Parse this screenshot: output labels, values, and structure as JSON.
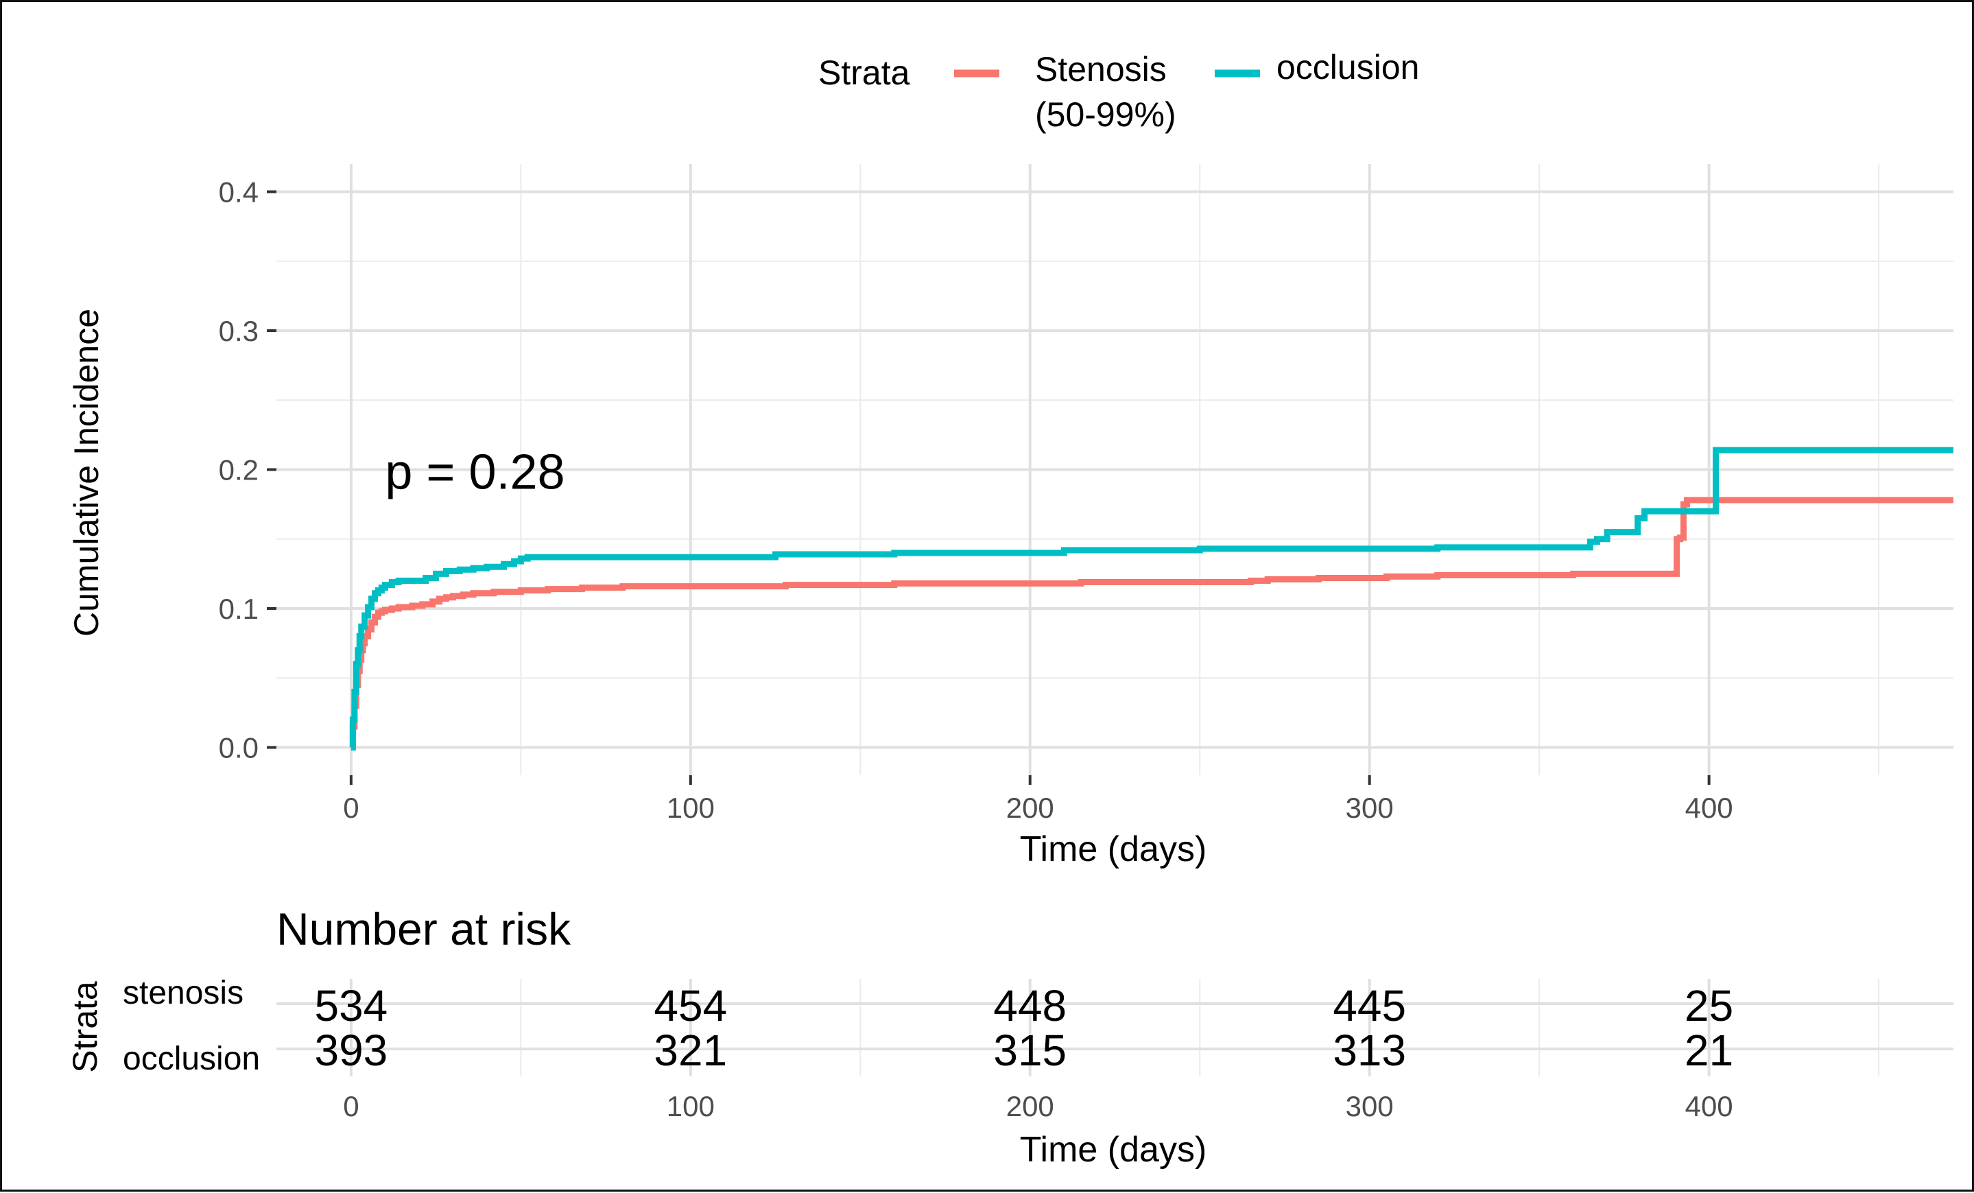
{
  "chart_data": {
    "type": "line",
    "step": true,
    "xlabel": "Time (days)",
    "ylabel": "Cumulative Incidence",
    "xlim": [
      -22,
      472
    ],
    "ylim": [
      -0.02,
      0.42
    ],
    "x_ticks": [
      0,
      100,
      200,
      300,
      400
    ],
    "x_tick_labels": [
      "0",
      "100",
      "200",
      "300",
      "400"
    ],
    "y_ticks": [
      0.0,
      0.1,
      0.2,
      0.3,
      0.4
    ],
    "y_tick_labels": [
      "0.0",
      "0.1",
      "0.2",
      "0.3",
      "0.4"
    ],
    "x_minor_ticks": [
      50,
      150,
      250,
      350,
      450
    ],
    "y_minor_ticks": [
      0.05,
      0.15,
      0.25,
      0.35
    ],
    "grid": true,
    "legend": {
      "title": "Strata",
      "position": "top",
      "entries": [
        {
          "label_line1": "Stenosis",
          "label_line2": "(50-99%)",
          "color": "#F8766D"
        },
        {
          "label_line1": "occlusion",
          "label_line2": "",
          "color": "#00BFC4"
        }
      ]
    },
    "annotation": {
      "text": "p = 0.28",
      "x": 10,
      "y": 0.198
    },
    "series": [
      {
        "name": "Stenosis (50-99%)",
        "color": "#F8766D",
        "x": [
          0,
          0.5,
          1,
          1.5,
          2,
          2.5,
          3,
          3.5,
          4,
          5,
          6,
          7,
          8,
          9,
          10,
          12,
          14,
          18,
          21,
          24,
          26,
          28,
          30,
          33,
          36,
          42,
          50,
          58,
          68,
          80,
          100,
          128,
          160,
          195,
          215,
          250,
          265,
          270,
          285,
          305,
          320,
          360,
          390.5,
          391.5,
          392.5,
          393.5,
          472
        ],
        "y": [
          0.0,
          0.015,
          0.03,
          0.045,
          0.055,
          0.063,
          0.07,
          0.075,
          0.08,
          0.085,
          0.09,
          0.094,
          0.097,
          0.098,
          0.099,
          0.1,
          0.101,
          0.102,
          0.103,
          0.105,
          0.107,
          0.108,
          0.109,
          0.11,
          0.111,
          0.112,
          0.113,
          0.114,
          0.115,
          0.116,
          0.116,
          0.117,
          0.118,
          0.118,
          0.119,
          0.119,
          0.12,
          0.121,
          0.122,
          0.123,
          0.124,
          0.125,
          0.15,
          0.151,
          0.175,
          0.178,
          0.178
        ]
      },
      {
        "name": "occlusion",
        "color": "#00BFC4",
        "x": [
          0,
          0.5,
          1,
          1.5,
          2,
          2.5,
          3,
          4,
          5,
          6,
          7,
          8,
          9,
          10,
          12,
          14,
          18,
          22,
          25,
          28,
          32,
          36,
          40,
          45,
          48,
          50,
          52,
          70,
          100,
          125,
          160,
          210,
          250,
          300,
          320,
          360,
          365,
          367,
          370,
          377,
          379,
          381,
          400,
          402,
          472
        ],
        "y": [
          0.0,
          0.02,
          0.04,
          0.06,
          0.07,
          0.08,
          0.087,
          0.095,
          0.101,
          0.107,
          0.111,
          0.113,
          0.115,
          0.117,
          0.119,
          0.12,
          0.12,
          0.122,
          0.125,
          0.127,
          0.128,
          0.129,
          0.13,
          0.132,
          0.134,
          0.136,
          0.137,
          0.137,
          0.137,
          0.139,
          0.14,
          0.142,
          0.143,
          0.143,
          0.144,
          0.144,
          0.148,
          0.15,
          0.155,
          0.155,
          0.165,
          0.17,
          0.17,
          0.214,
          0.214
        ]
      }
    ]
  },
  "risk_table": {
    "title": "Number at risk",
    "strata_axis_label": "Strata",
    "xlabel": "Time (days)",
    "times": [
      0,
      100,
      200,
      300,
      400
    ],
    "time_labels": [
      "0",
      "100",
      "200",
      "300",
      "400"
    ],
    "rows": [
      {
        "label": "stenosis",
        "values": [
          "534",
          "454",
          "448",
          "445",
          "25"
        ]
      },
      {
        "label": "occlusion",
        "values": [
          "393",
          "321",
          "315",
          "313",
          "21"
        ]
      }
    ]
  }
}
